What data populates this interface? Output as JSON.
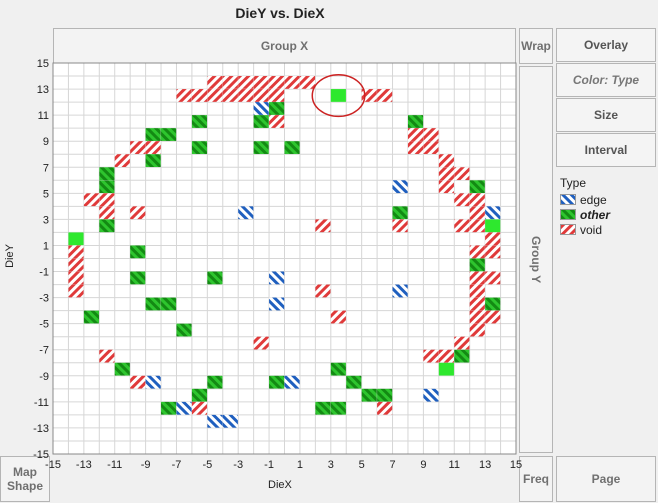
{
  "title": "DieY vs. DieX",
  "zones": {
    "group_x": "Group X",
    "group_y": "Group Y",
    "wrap": "Wrap",
    "freq": "Freq",
    "map_shape": "Map\nShape",
    "page": "Page"
  },
  "side_buttons": {
    "overlay": "Overlay",
    "color": "Color: Type",
    "size": "Size",
    "interval": "Interval"
  },
  "legend": {
    "title": "Type",
    "items": [
      {
        "label": "edge",
        "color": "#1f5fbf",
        "style": "stripe"
      },
      {
        "label": "other",
        "color": "#20b520",
        "style": "stripe-green"
      },
      {
        "label": "void",
        "color": "#e03a3a",
        "style": "stripe"
      }
    ]
  },
  "chart_data": {
    "type": "heatmap",
    "title": "DieY vs. DieX",
    "xlabel": "DieX",
    "ylabel": "DieY",
    "xlim": [
      -15,
      15
    ],
    "ylim": [
      -15,
      15
    ],
    "x_ticks": [
      -15,
      -13,
      -11,
      -9,
      -7,
      -5,
      -3,
      -1,
      1,
      3,
      5,
      7,
      9,
      11,
      13,
      15
    ],
    "y_ticks": [
      15,
      13,
      11,
      9,
      7,
      5,
      3,
      1,
      -1,
      -3,
      -5,
      -7,
      -9,
      -11,
      -13,
      -15
    ],
    "grid": true,
    "legend_position": "right",
    "cells": [
      {
        "x": -6,
        "y": 13,
        "type": "void"
      },
      {
        "x": -5,
        "y": 13,
        "type": "void"
      },
      {
        "x": -4,
        "y": 14,
        "type": "void"
      },
      {
        "x": -3,
        "y": 14,
        "type": "void"
      },
      {
        "x": -2,
        "y": 14,
        "type": "void"
      },
      {
        "x": -1,
        "y": 14,
        "type": "void"
      },
      {
        "x": 0,
        "y": 14,
        "type": "void"
      },
      {
        "x": 1,
        "y": 14,
        "type": "void"
      },
      {
        "x": 2,
        "y": 14,
        "type": "void"
      },
      {
        "x": -4,
        "y": 13,
        "type": "void"
      },
      {
        "x": -3,
        "y": 13,
        "type": "void"
      },
      {
        "x": -2,
        "y": 13,
        "type": "void"
      },
      {
        "x": -1,
        "y": 13,
        "type": "void"
      },
      {
        "x": 0,
        "y": 13,
        "type": "void"
      },
      {
        "x": 4,
        "y": 13,
        "type": "other-solid"
      },
      {
        "x": 6,
        "y": 13,
        "type": "void"
      },
      {
        "x": 7,
        "y": 13,
        "type": "void"
      },
      {
        "x": -1,
        "y": 12,
        "type": "edge"
      },
      {
        "x": 0,
        "y": 12,
        "type": "other"
      },
      {
        "x": -5,
        "y": 11,
        "type": "other"
      },
      {
        "x": -1,
        "y": 11,
        "type": "other"
      },
      {
        "x": 0,
        "y": 11,
        "type": "void"
      },
      {
        "x": 9,
        "y": 11,
        "type": "other"
      },
      {
        "x": -8,
        "y": 10,
        "type": "other"
      },
      {
        "x": -7,
        "y": 10,
        "type": "other"
      },
      {
        "x": 9,
        "y": 10,
        "type": "void"
      },
      {
        "x": 10,
        "y": 10,
        "type": "void"
      },
      {
        "x": -9,
        "y": 9,
        "type": "void"
      },
      {
        "x": -8,
        "y": 9,
        "type": "void"
      },
      {
        "x": -5,
        "y": 9,
        "type": "other"
      },
      {
        "x": -1,
        "y": 9,
        "type": "other"
      },
      {
        "x": 1,
        "y": 9,
        "type": "other"
      },
      {
        "x": 9,
        "y": 9,
        "type": "void"
      },
      {
        "x": 10,
        "y": 9,
        "type": "void"
      },
      {
        "x": -10,
        "y": 8,
        "type": "void"
      },
      {
        "x": -8,
        "y": 8,
        "type": "other"
      },
      {
        "x": 11,
        "y": 8,
        "type": "void"
      },
      {
        "x": -11,
        "y": 7,
        "type": "other"
      },
      {
        "x": 11,
        "y": 7,
        "type": "void"
      },
      {
        "x": 12,
        "y": 7,
        "type": "void"
      },
      {
        "x": -11,
        "y": 6,
        "type": "other"
      },
      {
        "x": 8,
        "y": 6,
        "type": "edge"
      },
      {
        "x": 11,
        "y": 6,
        "type": "void"
      },
      {
        "x": 13,
        "y": 6,
        "type": "other"
      },
      {
        "x": -12,
        "y": 5,
        "type": "void"
      },
      {
        "x": -11,
        "y": 5,
        "type": "void"
      },
      {
        "x": 12,
        "y": 5,
        "type": "void"
      },
      {
        "x": 13,
        "y": 5,
        "type": "void"
      },
      {
        "x": -11,
        "y": 4,
        "type": "void"
      },
      {
        "x": -9,
        "y": 4,
        "type": "void"
      },
      {
        "x": -2,
        "y": 4,
        "type": "edge"
      },
      {
        "x": 8,
        "y": 4,
        "type": "other"
      },
      {
        "x": 13,
        "y": 4,
        "type": "void"
      },
      {
        "x": 14,
        "y": 4,
        "type": "edge"
      },
      {
        "x": -11,
        "y": 3,
        "type": "other"
      },
      {
        "x": 3,
        "y": 3,
        "type": "void"
      },
      {
        "x": 8,
        "y": 3,
        "type": "void"
      },
      {
        "x": 12,
        "y": 3,
        "type": "void"
      },
      {
        "x": 13,
        "y": 3,
        "type": "void"
      },
      {
        "x": 14,
        "y": 3,
        "type": "other-solid"
      },
      {
        "x": -13,
        "y": 2,
        "type": "other-solid"
      },
      {
        "x": 14,
        "y": 2,
        "type": "void"
      },
      {
        "x": -13,
        "y": 1,
        "type": "void"
      },
      {
        "x": -9,
        "y": 1,
        "type": "other"
      },
      {
        "x": 13,
        "y": 1,
        "type": "void"
      },
      {
        "x": 14,
        "y": 1,
        "type": "void"
      },
      {
        "x": -13,
        "y": 0,
        "type": "void"
      },
      {
        "x": 13,
        "y": 0,
        "type": "other"
      },
      {
        "x": -13,
        "y": -1,
        "type": "void"
      },
      {
        "x": -9,
        "y": -1,
        "type": "other"
      },
      {
        "x": -4,
        "y": -1,
        "type": "other"
      },
      {
        "x": 0,
        "y": -1,
        "type": "edge"
      },
      {
        "x": 13,
        "y": -1,
        "type": "void"
      },
      {
        "x": 14,
        "y": -1,
        "type": "void"
      },
      {
        "x": -13,
        "y": -2,
        "type": "void"
      },
      {
        "x": 3,
        "y": -2,
        "type": "void"
      },
      {
        "x": 8,
        "y": -2,
        "type": "edge"
      },
      {
        "x": 13,
        "y": -2,
        "type": "void"
      },
      {
        "x": -8,
        "y": -3,
        "type": "other"
      },
      {
        "x": -7,
        "y": -3,
        "type": "other"
      },
      {
        "x": 0,
        "y": -3,
        "type": "edge"
      },
      {
        "x": 13,
        "y": -3,
        "type": "void"
      },
      {
        "x": 14,
        "y": -3,
        "type": "other"
      },
      {
        "x": -12,
        "y": -4,
        "type": "other"
      },
      {
        "x": 4,
        "y": -4,
        "type": "void"
      },
      {
        "x": 13,
        "y": -4,
        "type": "void"
      },
      {
        "x": 14,
        "y": -4,
        "type": "void"
      },
      {
        "x": -6,
        "y": -5,
        "type": "other"
      },
      {
        "x": 13,
        "y": -5,
        "type": "void"
      },
      {
        "x": -1,
        "y": -6,
        "type": "void"
      },
      {
        "x": 12,
        "y": -6,
        "type": "void"
      },
      {
        "x": -11,
        "y": -7,
        "type": "void"
      },
      {
        "x": 10,
        "y": -7,
        "type": "void"
      },
      {
        "x": 11,
        "y": -7,
        "type": "void"
      },
      {
        "x": 12,
        "y": -7,
        "type": "other"
      },
      {
        "x": -10,
        "y": -8,
        "type": "other"
      },
      {
        "x": 4,
        "y": -8,
        "type": "other"
      },
      {
        "x": 11,
        "y": -8,
        "type": "other-solid"
      },
      {
        "x": -9,
        "y": -9,
        "type": "void"
      },
      {
        "x": -8,
        "y": -9,
        "type": "edge"
      },
      {
        "x": -4,
        "y": -9,
        "type": "other"
      },
      {
        "x": 0,
        "y": -9,
        "type": "other"
      },
      {
        "x": 1,
        "y": -9,
        "type": "edge"
      },
      {
        "x": 5,
        "y": -9,
        "type": "other"
      },
      {
        "x": -5,
        "y": -10,
        "type": "other"
      },
      {
        "x": 6,
        "y": -10,
        "type": "other"
      },
      {
        "x": 7,
        "y": -10,
        "type": "other"
      },
      {
        "x": 10,
        "y": -10,
        "type": "edge"
      },
      {
        "x": -7,
        "y": -11,
        "type": "other"
      },
      {
        "x": -6,
        "y": -11,
        "type": "edge"
      },
      {
        "x": -5,
        "y": -11,
        "type": "void"
      },
      {
        "x": 3,
        "y": -11,
        "type": "other"
      },
      {
        "x": 4,
        "y": -11,
        "type": "other"
      },
      {
        "x": 7,
        "y": -11,
        "type": "void"
      },
      {
        "x": -4,
        "y": -12,
        "type": "edge"
      },
      {
        "x": -3,
        "y": -12,
        "type": "edge"
      }
    ],
    "annotations": [
      {
        "shape": "ellipse",
        "around_cell": {
          "x": 4,
          "y": 13
        },
        "color": "#cc2222"
      }
    ]
  }
}
